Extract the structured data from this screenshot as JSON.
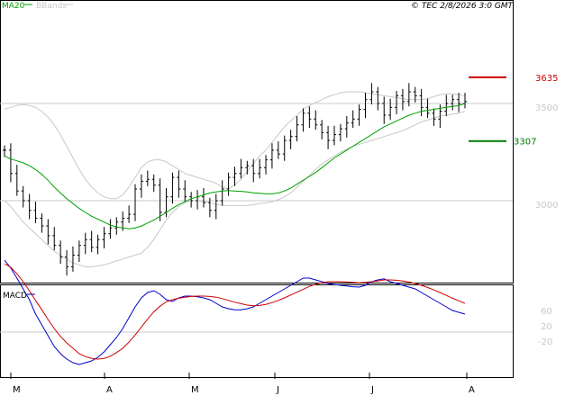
{
  "header": {
    "legend_ma": "MA20",
    "legend_bb": "BBands",
    "stamp": "© TEC 2/8/2026 3:0 GMT"
  },
  "colors": {
    "ma": "#00a000",
    "bands": "#c8c8c8",
    "candle": "#000000",
    "resistance": "#cc0000",
    "support": "#007a00",
    "macd": "#0000cc",
    "signal": "#cc0000",
    "grid": "#c8c8c8",
    "axis_text": "#c8c8c8"
  },
  "chart_data": [
    {
      "type": "line",
      "subtype": "ohlc-bars",
      "legend": [
        "MA20",
        "BBands"
      ],
      "ylim": [
        2580,
        3980
      ],
      "y_ticks": [
        "3500",
        "3000"
      ],
      "x_ticks": [
        "M",
        "A",
        "M",
        "J",
        "J",
        "A"
      ],
      "levels": [
        {
          "label": "3635",
          "value": 3635,
          "color": "#cc0000"
        },
        {
          "label": "3307",
          "value": 3307,
          "color": "#007a00"
        }
      ],
      "series": [
        {
          "name": "MA20",
          "values": [
            3230,
            3215,
            3205,
            3195,
            3180,
            3160,
            3135,
            3105,
            3070,
            3040,
            3010,
            2985,
            2960,
            2940,
            2920,
            2905,
            2890,
            2875,
            2865,
            2860,
            2855,
            2860,
            2870,
            2885,
            2900,
            2920,
            2940,
            2960,
            2980,
            2995,
            3010,
            3020,
            3030,
            3040,
            3045,
            3050,
            3052,
            3050,
            3048,
            3045,
            3040,
            3038,
            3035,
            3035,
            3040,
            3050,
            3065,
            3085,
            3105,
            3125,
            3145,
            3170,
            3195,
            3220,
            3240,
            3260,
            3280,
            3300,
            3320,
            3340,
            3360,
            3380,
            3395,
            3410,
            3425,
            3440,
            3450,
            3460,
            3465,
            3470,
            3475,
            3480,
            3485,
            3490,
            3500
          ]
        },
        {
          "name": "BBands upper",
          "values": [
            3470,
            3480,
            3490,
            3495,
            3490,
            3480,
            3460,
            3430,
            3390,
            3340,
            3280,
            3220,
            3160,
            3110,
            3070,
            3040,
            3020,
            3010,
            3010,
            3030,
            3070,
            3120,
            3170,
            3200,
            3210,
            3210,
            3200,
            3180,
            3160,
            3140,
            3130,
            3120,
            3110,
            3100,
            3090,
            3070,
            3060,
            3080,
            3110,
            3150,
            3190,
            3230,
            3260,
            3300,
            3340,
            3380,
            3410,
            3440,
            3470,
            3490,
            3505,
            3520,
            3535,
            3545,
            3555,
            3560,
            3560,
            3560,
            3555,
            3550,
            3545,
            3540,
            3535,
            3530,
            3525,
            3520,
            3520,
            3520,
            3525,
            3535,
            3545,
            3550,
            3550,
            3545,
            3540
          ]
        },
        {
          "name": "BBands lower",
          "values": [
            3000,
            2970,
            2930,
            2890,
            2860,
            2830,
            2800,
            2770,
            2740,
            2720,
            2700,
            2680,
            2670,
            2660,
            2660,
            2665,
            2670,
            2680,
            2690,
            2700,
            2710,
            2720,
            2730,
            2760,
            2800,
            2850,
            2900,
            2940,
            2970,
            2990,
            3000,
            3000,
            2995,
            2990,
            2980,
            2975,
            2975,
            2975,
            2975,
            2975,
            2980,
            2985,
            2990,
            2995,
            3005,
            3020,
            3040,
            3070,
            3100,
            3130,
            3160,
            3190,
            3210,
            3230,
            3250,
            3265,
            3280,
            3290,
            3300,
            3310,
            3320,
            3330,
            3340,
            3350,
            3360,
            3375,
            3390,
            3405,
            3415,
            3425,
            3435,
            3440,
            3445,
            3450,
            3460
          ]
        },
        {
          "name": "Close",
          "values": [
            3260,
            3140,
            3050,
            3000,
            2950,
            2910,
            2870,
            2820,
            2770,
            2710,
            2660,
            2720,
            2770,
            2800,
            2760,
            2800,
            2830,
            2860,
            2890,
            2910,
            2930,
            3060,
            3100,
            3110,
            3080,
            2940,
            3020,
            3120,
            3060,
            3020,
            3000,
            3020,
            2990,
            2950,
            3000,
            3060,
            3120,
            3140,
            3170,
            3180,
            3140,
            3170,
            3210,
            3260,
            3240,
            3310,
            3330,
            3390,
            3450,
            3420,
            3390,
            3350,
            3310,
            3340,
            3370,
            3400,
            3420,
            3470,
            3520,
            3560,
            3500,
            3440,
            3480,
            3540,
            3510,
            3560,
            3540,
            3480,
            3450,
            3420,
            3460,
            3500,
            3520,
            3500,
            3510
          ]
        }
      ]
    },
    {
      "type": "line",
      "title": "MACD",
      "ylim": [
        -110,
        210
      ],
      "y_ticks": [
        "60",
        "20",
        "-20"
      ],
      "series": [
        {
          "name": "MACD",
          "values": [
            200,
            178,
            150,
            120,
            90,
            50,
            20,
            -10,
            -40,
            -60,
            -75,
            -85,
            -90,
            -85,
            -80,
            -70,
            -55,
            -35,
            -15,
            10,
            40,
            70,
            95,
            110,
            115,
            105,
            90,
            85,
            95,
            100,
            100,
            98,
            95,
            90,
            80,
            70,
            65,
            62,
            62,
            65,
            70,
            80,
            90,
            100,
            110,
            120,
            130,
            140,
            150,
            150,
            145,
            140,
            135,
            132,
            130,
            128,
            126,
            125,
            130,
            140,
            145,
            148,
            140,
            135,
            130,
            125,
            120,
            110,
            100,
            90,
            80,
            70,
            60,
            55,
            50
          ]
        },
        {
          "name": "Signal",
          "values": [
            190,
            180,
            162,
            140,
            115,
            88,
            62,
            35,
            10,
            -12,
            -30,
            -45,
            -60,
            -68,
            -73,
            -75,
            -73,
            -67,
            -57,
            -45,
            -28,
            -8,
            14,
            36,
            56,
            72,
            84,
            90,
            94,
            97,
            99,
            100,
            100,
            99,
            97,
            93,
            88,
            83,
            79,
            75,
            73,
            74,
            77,
            82,
            88,
            95,
            103,
            111,
            119,
            127,
            133,
            137,
            140,
            140,
            140,
            139,
            138,
            137,
            138,
            140,
            142,
            145,
            145,
            144,
            142,
            139,
            135,
            130,
            124,
            117,
            110,
            102,
            94,
            87,
            80
          ]
        }
      ]
    }
  ]
}
